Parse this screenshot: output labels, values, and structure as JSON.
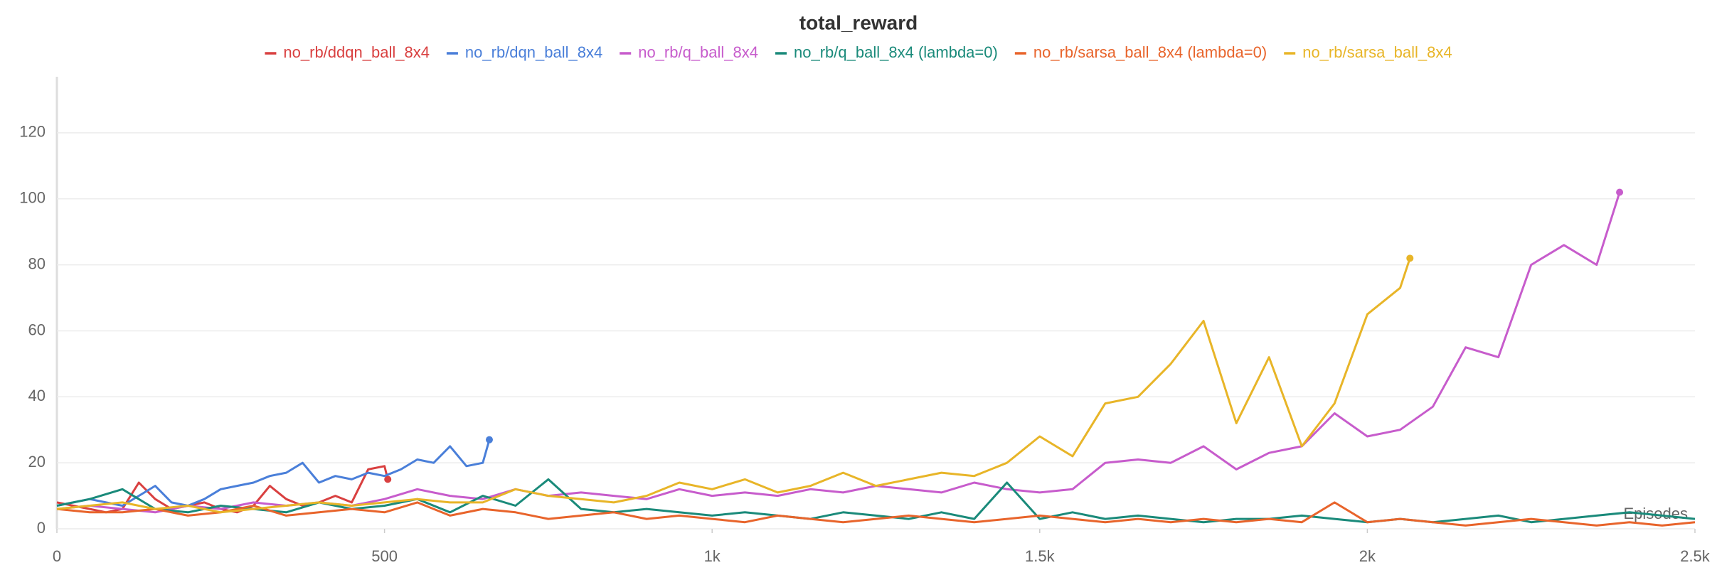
{
  "chart_data": {
    "type": "line",
    "title": "total_reward",
    "x_label": "Episodes",
    "xlim": [
      0,
      2500
    ],
    "ylim": [
      0,
      137
    ],
    "xticks": [
      0,
      500,
      {
        "value": 1000,
        "label": "1k"
      },
      {
        "value": 1500,
        "label": "1.5k"
      },
      {
        "value": 2000,
        "label": "2k"
      },
      {
        "value": 2500,
        "label": "2.5k"
      }
    ],
    "yticks": [
      0,
      20,
      40,
      60,
      80,
      100,
      120
    ],
    "grid": true,
    "series": [
      {
        "name": "no_rb/ddqn_ball_8x4",
        "color": "#d94040",
        "x": [
          0,
          25,
          50,
          75,
          100,
          125,
          150,
          175,
          200,
          225,
          250,
          275,
          300,
          325,
          350,
          375,
          400,
          425,
          450,
          475,
          500,
          505
        ],
        "values": [
          8,
          7,
          6,
          5,
          6,
          14,
          9,
          6,
          7,
          8,
          6,
          5,
          7,
          13,
          9,
          7,
          8,
          10,
          8,
          18,
          19,
          15
        ]
      },
      {
        "name": "no_rb/dqn_ball_8x4",
        "color": "#4a7fd9",
        "x": [
          0,
          25,
          50,
          75,
          100,
          125,
          150,
          175,
          200,
          225,
          250,
          275,
          300,
          325,
          350,
          375,
          400,
          425,
          450,
          475,
          500,
          525,
          550,
          575,
          600,
          625,
          650,
          660
        ],
        "values": [
          7,
          8,
          9,
          8,
          7,
          10,
          13,
          8,
          7,
          9,
          12,
          13,
          14,
          16,
          17,
          20,
          14,
          16,
          15,
          17,
          16,
          18,
          21,
          20,
          25,
          19,
          20,
          27
        ]
      },
      {
        "name": "no_rb/q_ball_8x4",
        "color": "#c75ccc",
        "x": [
          0,
          50,
          100,
          150,
          200,
          250,
          300,
          350,
          400,
          450,
          500,
          550,
          600,
          650,
          700,
          750,
          800,
          850,
          900,
          950,
          1000,
          1050,
          1100,
          1150,
          1200,
          1250,
          1300,
          1350,
          1400,
          1450,
          1500,
          1550,
          1600,
          1650,
          1700,
          1750,
          1800,
          1850,
          1900,
          1950,
          2000,
          2050,
          2100,
          2150,
          2200,
          2250,
          2300,
          2350,
          2385
        ],
        "values": [
          6,
          7,
          6,
          5,
          7,
          6,
          8,
          7,
          8,
          7,
          9,
          12,
          10,
          9,
          12,
          10,
          11,
          10,
          9,
          12,
          10,
          11,
          10,
          12,
          11,
          13,
          12,
          11,
          14,
          12,
          11,
          12,
          20,
          21,
          20,
          25,
          18,
          23,
          25,
          35,
          28,
          30,
          37,
          55,
          52,
          80,
          86,
          80,
          102
        ]
      },
      {
        "name": "no_rb/q_ball_8x4 (lambda=0)",
        "color": "#1a8a7a",
        "x": [
          0,
          50,
          100,
          150,
          200,
          250,
          300,
          350,
          400,
          450,
          500,
          550,
          600,
          650,
          700,
          750,
          800,
          850,
          900,
          950,
          1000,
          1050,
          1100,
          1150,
          1200,
          1250,
          1300,
          1350,
          1400,
          1450,
          1500,
          1550,
          1600,
          1650,
          1700,
          1750,
          1800,
          1850,
          1900,
          1950,
          2000,
          2050,
          2100,
          2150,
          2200,
          2250,
          2300,
          2350,
          2400,
          2450,
          2500
        ],
        "values": [
          7,
          9,
          12,
          6,
          5,
          7,
          6,
          5,
          8,
          6,
          7,
          9,
          5,
          10,
          7,
          15,
          6,
          5,
          6,
          5,
          4,
          5,
          4,
          3,
          5,
          4,
          3,
          5,
          3,
          14,
          3,
          5,
          3,
          4,
          3,
          2,
          3,
          3,
          4,
          3,
          2,
          3,
          2,
          3,
          4,
          2,
          3,
          4,
          5,
          4,
          3
        ]
      },
      {
        "name": "no_rb/sarsa_ball_8x4 (lambda=0)",
        "color": "#e8642b",
        "x": [
          0,
          50,
          100,
          150,
          200,
          250,
          300,
          350,
          400,
          450,
          500,
          550,
          600,
          650,
          700,
          750,
          800,
          850,
          900,
          950,
          1000,
          1050,
          1100,
          1150,
          1200,
          1250,
          1300,
          1350,
          1400,
          1450,
          1500,
          1550,
          1600,
          1650,
          1700,
          1750,
          1800,
          1850,
          1900,
          1950,
          2000,
          2050,
          2100,
          2150,
          2200,
          2250,
          2300,
          2350,
          2400,
          2450,
          2500
        ],
        "values": [
          6,
          5,
          5,
          6,
          4,
          5,
          7,
          4,
          5,
          6,
          5,
          8,
          4,
          6,
          5,
          3,
          4,
          5,
          3,
          4,
          3,
          2,
          4,
          3,
          2,
          3,
          4,
          3,
          2,
          3,
          4,
          3,
          2,
          3,
          2,
          3,
          2,
          3,
          2,
          8,
          2,
          3,
          2,
          1,
          2,
          3,
          2,
          1,
          2,
          1,
          2
        ]
      },
      {
        "name": "no_rb/sarsa_ball_8x4",
        "color": "#e8b528",
        "x": [
          0,
          50,
          100,
          150,
          200,
          250,
          300,
          350,
          400,
          450,
          500,
          550,
          600,
          650,
          700,
          750,
          800,
          850,
          900,
          950,
          1000,
          1050,
          1100,
          1150,
          1200,
          1250,
          1300,
          1350,
          1400,
          1450,
          1500,
          1550,
          1600,
          1650,
          1700,
          1750,
          1800,
          1850,
          1900,
          1950,
          2000,
          2050,
          2065
        ],
        "values": [
          6,
          7,
          8,
          6,
          7,
          5,
          6,
          7,
          8,
          7,
          8,
          9,
          8,
          8,
          12,
          10,
          9,
          8,
          10,
          14,
          12,
          15,
          11,
          13,
          17,
          13,
          15,
          17,
          16,
          20,
          28,
          22,
          38,
          40,
          50,
          63,
          32,
          52,
          25,
          38,
          65,
          73,
          82
        ]
      }
    ]
  }
}
